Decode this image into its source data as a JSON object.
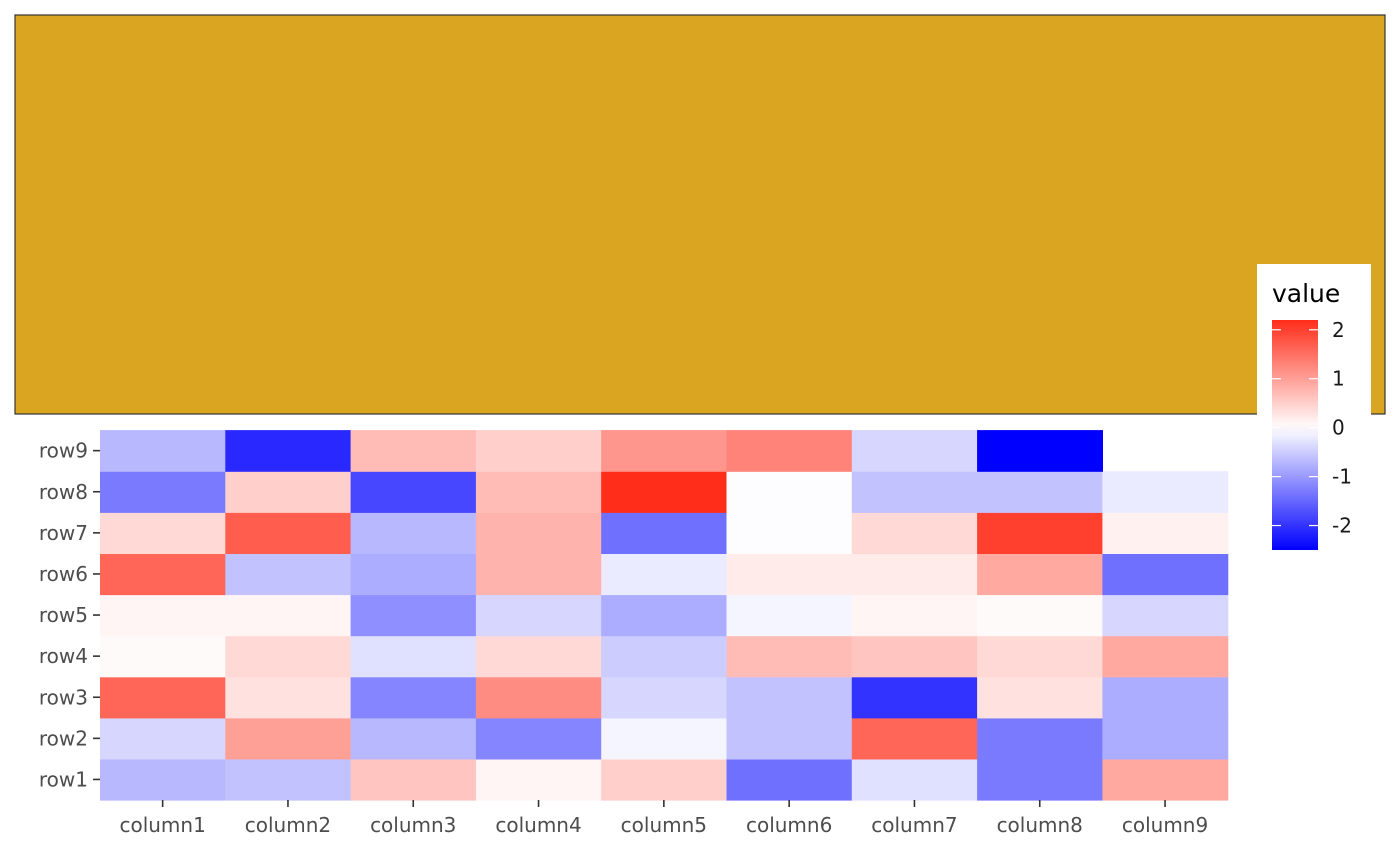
{
  "chart_data": {
    "type": "heatmap",
    "title": "",
    "xlabel": "",
    "ylabel": "",
    "columns": [
      "column1",
      "column2",
      "column3",
      "column4",
      "column5",
      "column6",
      "column7",
      "column8",
      "column9"
    ],
    "rows": [
      "row1",
      "row2",
      "row3",
      "row4",
      "row5",
      "row6",
      "row7",
      "row8",
      "row9"
    ],
    "values": [
      [
        -0.7,
        -0.6,
        0.6,
        0.1,
        0.5,
        -1.4,
        -0.3,
        -1.3,
        0.9
      ],
      [
        -0.4,
        1.0,
        -0.7,
        -1.2,
        -0.1,
        -0.6,
        1.6,
        -1.3,
        -0.8
      ],
      [
        1.6,
        0.3,
        -1.2,
        1.2,
        -0.4,
        -0.6,
        -2.0,
        0.3,
        -0.8
      ],
      [
        0.05,
        0.4,
        -0.3,
        0.4,
        -0.5,
        0.7,
        0.6,
        0.4,
        0.9
      ],
      [
        0.1,
        0.1,
        -1.1,
        -0.4,
        -0.8,
        -0.1,
        0.1,
        0.05,
        -0.4
      ],
      [
        1.6,
        -0.6,
        -0.8,
        0.8,
        -0.2,
        0.2,
        0.2,
        0.9,
        -1.4
      ],
      [
        0.4,
        1.7,
        -0.7,
        0.8,
        -1.4,
        -0.02,
        0.4,
        2.0,
        0.15
      ],
      [
        -1.3,
        0.5,
        -1.8,
        0.7,
        2.2,
        -0.02,
        -0.6,
        -0.6,
        -0.2
      ],
      [
        -0.7,
        -2.1,
        0.7,
        0.5,
        1.1,
        1.3,
        -0.4,
        -2.5,
        null
      ]
    ],
    "color_scale": {
      "low": "#0000ff",
      "mid": "#ffffff",
      "high": "#ff2d1a",
      "min": -2.5,
      "max": 2.2
    },
    "legend": {
      "title": "value",
      "position": "right",
      "ticks": [
        2,
        1,
        0,
        -1,
        -2
      ],
      "tick_labels": [
        "2",
        "1",
        "0",
        "-1",
        "-2"
      ]
    },
    "top_panel": {
      "fill": "#DAA520",
      "border": "#333333"
    },
    "grid": false
  }
}
